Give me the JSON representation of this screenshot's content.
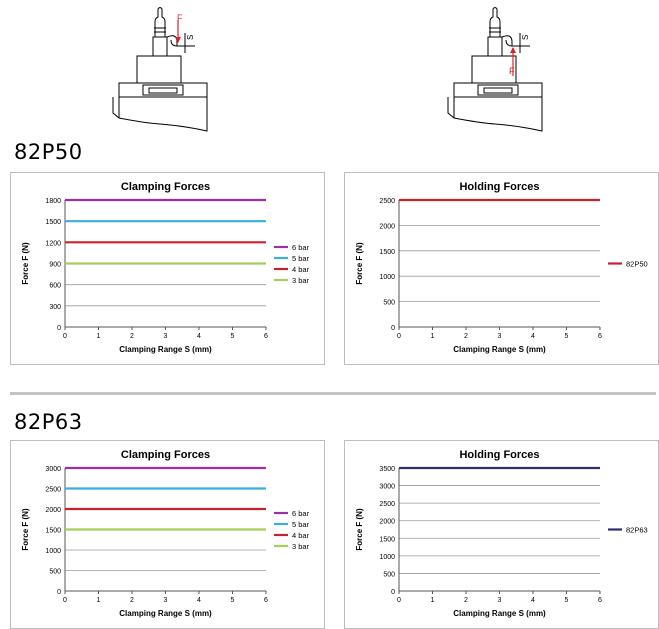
{
  "diagrams": [
    {
      "force_label": "F",
      "stroke_label": "S"
    },
    {
      "force_label": "F",
      "stroke_label": "S"
    }
  ],
  "sections": [
    {
      "title": "82P50",
      "charts": [
        {
          "type": "line",
          "title": "Clamping Forces",
          "xlabel": "Clamping Range S (mm)",
          "ylabel": "Force F (N)",
          "xlim": [
            0,
            6
          ],
          "ylim": [
            0,
            1800
          ],
          "xticks": [
            0,
            1,
            2,
            3,
            4,
            5,
            6
          ],
          "yticks": [
            0,
            300,
            600,
            900,
            1200,
            1500,
            1800
          ],
          "legend": "right",
          "series": [
            {
              "name": "6 bar",
              "color": "#9b2fa3",
              "x": [
                0,
                6
              ],
              "y": [
                1800,
                1800
              ]
            },
            {
              "name": "5 bar",
              "color": "#3aaee0",
              "x": [
                0,
                6
              ],
              "y": [
                1500,
                1500
              ]
            },
            {
              "name": "4 bar",
              "color": "#c8222c",
              "x": [
                0,
                6
              ],
              "y": [
                1200,
                1200
              ]
            },
            {
              "name": "3 bar",
              "color": "#a6cf5a",
              "x": [
                0,
                6
              ],
              "y": [
                900,
                900
              ]
            }
          ]
        },
        {
          "type": "line",
          "title": "Holding Forces",
          "xlabel": "Clamping Range S (mm)",
          "ylabel": "Force F (N)",
          "xlim": [
            0,
            6
          ],
          "ylim": [
            0,
            2500
          ],
          "xticks": [
            0,
            1,
            2,
            3,
            4,
            5,
            6
          ],
          "yticks": [
            0,
            500,
            1000,
            1500,
            2000,
            2500
          ],
          "legend": "right",
          "series": [
            {
              "name": "82P50",
              "color": "#c8222c",
              "x": [
                0,
                6
              ],
              "y": [
                2500,
                2500
              ]
            }
          ]
        }
      ]
    },
    {
      "title": "82P63",
      "charts": [
        {
          "type": "line",
          "title": "Clamping Forces",
          "xlabel": "Clamping Range S (mm)",
          "ylabel": "Force F (N)",
          "xlim": [
            0,
            6
          ],
          "ylim": [
            0,
            3000
          ],
          "xticks": [
            0,
            1,
            2,
            3,
            4,
            5,
            6
          ],
          "yticks": [
            0,
            500,
            1000,
            1500,
            2000,
            2500,
            3000
          ],
          "legend": "right",
          "series": [
            {
              "name": "6 bar",
              "color": "#9b2fa3",
              "x": [
                0,
                6
              ],
              "y": [
                3000,
                3000
              ]
            },
            {
              "name": "5 bar",
              "color": "#3aaee0",
              "x": [
                0,
                6
              ],
              "y": [
                2500,
                2500
              ]
            },
            {
              "name": "4 bar",
              "color": "#c8222c",
              "x": [
                0,
                6
              ],
              "y": [
                2000,
                2000
              ]
            },
            {
              "name": "3 bar",
              "color": "#a6cf5a",
              "x": [
                0,
                6
              ],
              "y": [
                1500,
                1500
              ]
            }
          ]
        },
        {
          "type": "line",
          "title": "Holding Forces",
          "xlabel": "Clamping Range S (mm)",
          "ylabel": "Force F (N)",
          "xlim": [
            0,
            6
          ],
          "ylim": [
            0,
            3500
          ],
          "xticks": [
            0,
            1,
            2,
            3,
            4,
            5,
            6
          ],
          "yticks": [
            0,
            500,
            1000,
            1500,
            2000,
            2500,
            3000,
            3500
          ],
          "legend": "right",
          "series": [
            {
              "name": "82P63",
              "color": "#2b2f6e",
              "x": [
                0,
                6
              ],
              "y": [
                3500,
                3500
              ]
            }
          ]
        }
      ]
    }
  ]
}
